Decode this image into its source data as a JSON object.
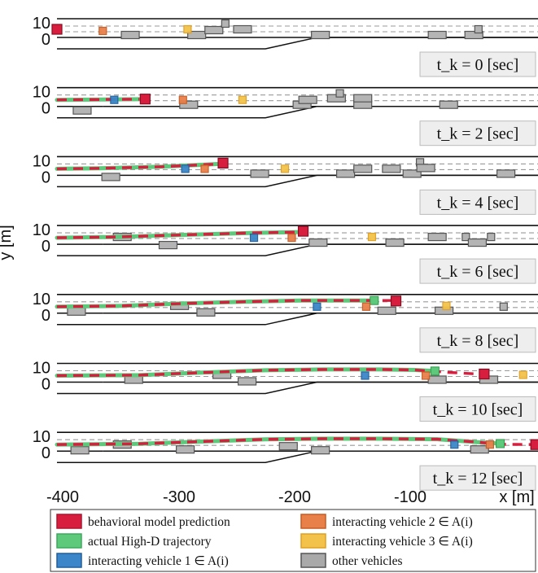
{
  "chart_data": {
    "type": "scatter",
    "title": "",
    "xlabel": "x [m]",
    "ylabel": "y [m]",
    "xlim": [
      -412,
      8
    ],
    "ylim": [
      -6,
      13
    ],
    "xticks": [
      -400,
      -300,
      -200,
      -100
    ],
    "x_tick_labels": [
      "-400",
      "-300",
      "-200",
      "-100"
    ],
    "yticks": [
      0,
      10
    ],
    "y_tick_labels": [
      "0",
      "10"
    ],
    "grid": false,
    "legend_position": "bottom",
    "colors": {
      "prediction": "#d81e3e",
      "actual": "#5ec97a",
      "vehicle1": "#3a86c8",
      "vehicle2": "#e8804a",
      "vehicle3": "#f3c24a",
      "other": "#a9a9a9"
    },
    "legend": [
      {
        "key": "prediction",
        "label": "behavioral model prediction"
      },
      {
        "key": "vehicle2",
        "label": "interacting vehicle 2 ∈ A(i)"
      },
      {
        "key": "actual",
        "label": "actual High-D trajectory"
      },
      {
        "key": "vehicle3",
        "label": "interacting vehicle 3 ∈ A(i)"
      },
      {
        "key": "vehicle1",
        "label": "interacting vehicle 1 ∈ A(i)"
      },
      {
        "key": "other",
        "label": "other vehicles"
      }
    ],
    "panels": [
      {
        "label": "t_k = 0 [sec]",
        "t": "0",
        "prediction": [],
        "actual": [],
        "ego": [
          -412,
          6
        ],
        "v1": null,
        "v2": [
          -372,
          5
        ],
        "v3": [
          -298,
          6
        ],
        "others": [
          [
            -348,
            2.5
          ],
          [
            -290,
            2.5
          ],
          [
            -275,
            5.5
          ],
          [
            -265,
            9.5
          ],
          [
            -250,
            6
          ],
          [
            -182,
            2.5
          ],
          [
            -80,
            2.5
          ],
          [
            -48,
            2.5
          ],
          [
            -44,
            6
          ]
        ]
      },
      {
        "label": "t_k = 2 [sec]",
        "t": "2",
        "prediction": [
          [
            -412,
            5
          ],
          [
            -340,
            5.4
          ]
        ],
        "actual": [
          [
            -412,
            5
          ],
          [
            -340,
            5.4
          ]
        ],
        "ego": [
          -335,
          5.5
        ],
        "v1": [
          -362,
          5
        ],
        "v2": [
          -302,
          5
        ],
        "v3": [
          -250,
          5
        ],
        "others": [
          [
            -390,
            -1.5
          ],
          [
            -297,
            2
          ],
          [
            -198,
            2
          ],
          [
            -193,
            5
          ],
          [
            -168,
            6
          ],
          [
            -165,
            9
          ],
          [
            -145,
            2
          ],
          [
            -145,
            6
          ],
          [
            -70,
            2
          ]
        ]
      },
      {
        "label": "t_k = 4 [sec]",
        "t": "4",
        "prediction": [
          [
            -412,
            5
          ],
          [
            -375,
            5.3
          ],
          [
            -320,
            6.3
          ],
          [
            -270,
            8
          ]
        ],
        "actual": [
          [
            -412,
            5
          ],
          [
            -375,
            5.3
          ],
          [
            -320,
            6.3
          ],
          [
            -270,
            8
          ]
        ],
        "ego": [
          -267,
          8.5
        ],
        "v1": [
          -300,
          5
        ],
        "v2": [
          -283,
          5
        ],
        "v3": [
          -213,
          5
        ],
        "others": [
          [
            -365,
            0
          ],
          [
            -235,
            2
          ],
          [
            -160,
            2
          ],
          [
            -145,
            5
          ],
          [
            -120,
            5
          ],
          [
            -102,
            2
          ],
          [
            -95,
            9
          ],
          [
            -90,
            5.5
          ],
          [
            -20,
            2
          ]
        ]
      },
      {
        "label": "t_k = 6 [sec]",
        "t": "6",
        "prediction": [
          [
            -412,
            5
          ],
          [
            -360,
            5.5
          ],
          [
            -300,
            6.8
          ],
          [
            -240,
            8
          ],
          [
            -200,
            8.5
          ]
        ],
        "actual": [
          [
            -412,
            5
          ],
          [
            -360,
            5.5
          ],
          [
            -300,
            6.8
          ],
          [
            -240,
            8
          ],
          [
            -200,
            8.5
          ]
        ],
        "ego": [
          -197,
          9
        ],
        "v1": [
          -240,
          5
        ],
        "v2": [
          -207,
          5
        ],
        "v3": [
          -137,
          5.5
        ],
        "others": [
          [
            -355,
            5.5
          ],
          [
            -315,
            0.5
          ],
          [
            -184,
            2
          ],
          [
            -117,
            2
          ],
          [
            -80,
            5.5
          ],
          [
            -55,
            5.5
          ],
          [
            -45,
            2
          ],
          [
            -33,
            5.5
          ]
        ]
      },
      {
        "label": "t_k = 8 [sec]",
        "t": "8",
        "prediction": [
          [
            -412,
            5
          ],
          [
            -355,
            5.5
          ],
          [
            -300,
            7
          ],
          [
            -250,
            8
          ],
          [
            -200,
            8.8
          ],
          [
            -160,
            8.8
          ],
          [
            -120,
            8.8
          ]
        ],
        "actual": [
          [
            -412,
            5
          ],
          [
            -355,
            5.5
          ],
          [
            -300,
            7
          ],
          [
            -250,
            8
          ],
          [
            -200,
            8.8
          ],
          [
            -160,
            8.8
          ],
          [
            -135,
            8.8
          ]
        ],
        "ego": [
          -116,
          8.5
        ],
        "v1": [
          -185,
          5
        ],
        "v2": [
          -142,
          5
        ],
        "v3": [
          -72,
          5.5
        ],
        "others": [
          [
            -395,
            2
          ],
          [
            -305,
            5.5
          ],
          [
            -282,
            1.5
          ],
          [
            -124,
            2.5
          ],
          [
            -74,
            2.5
          ],
          [
            -22,
            5
          ]
        ]
      },
      {
        "label": "t_k = 10 [sec]",
        "t": "10",
        "prediction": [
          [
            -412,
            5
          ],
          [
            -340,
            5.3
          ],
          [
            -280,
            7
          ],
          [
            -230,
            8.3
          ],
          [
            -180,
            8.8
          ],
          [
            -130,
            8.8
          ],
          [
            -100,
            8.5
          ],
          [
            -70,
            7
          ],
          [
            -45,
            6
          ]
        ],
        "actual": [
          [
            -412,
            5
          ],
          [
            -340,
            5.3
          ],
          [
            -280,
            7
          ],
          [
            -230,
            8.3
          ],
          [
            -180,
            8.8
          ],
          [
            -130,
            8.8
          ],
          [
            -100,
            8.5
          ],
          [
            -82,
            7.8
          ]
        ],
        "ego": [
          -39,
          6
        ],
        "v1": [
          -143,
          5
        ],
        "v2": [
          -90,
          5
        ],
        "v3": [
          -5,
          5.5
        ],
        "others": [
          [
            -345,
            2.5
          ],
          [
            -268,
            5.5
          ],
          [
            -246,
            1.5
          ],
          [
            -80,
            2.5
          ],
          [
            -35,
            2.5
          ]
        ]
      },
      {
        "label": "t_k = 12 [sec]",
        "t": "12",
        "prediction": [
          [
            -412,
            5
          ],
          [
            -340,
            5.5
          ],
          [
            -280,
            7
          ],
          [
            -230,
            8.2
          ],
          [
            -180,
            8.6
          ],
          [
            -130,
            8.6
          ],
          [
            -80,
            8.3
          ],
          [
            -45,
            6.5
          ],
          [
            -25,
            5.2
          ],
          [
            5,
            5
          ]
        ],
        "actual": [
          [
            -412,
            5
          ],
          [
            -340,
            5.5
          ],
          [
            -280,
            7
          ],
          [
            -230,
            8.2
          ],
          [
            -180,
            8.6
          ],
          [
            -130,
            8.6
          ],
          [
            -80,
            8.3
          ],
          [
            -45,
            6.5
          ],
          [
            -25,
            5.6
          ]
        ],
        "ego": [
          6,
          5
        ],
        "v1": [
          -65,
          5
        ],
        "v2": [
          -34,
          5
        ],
        "v3": null,
        "others": [
          [
            -392,
            1.5
          ],
          [
            -300,
            2
          ],
          [
            -210,
            4
          ],
          [
            -182,
            1.5
          ],
          [
            -43,
            2
          ],
          [
            -355,
            5
          ]
        ]
      }
    ]
  }
}
